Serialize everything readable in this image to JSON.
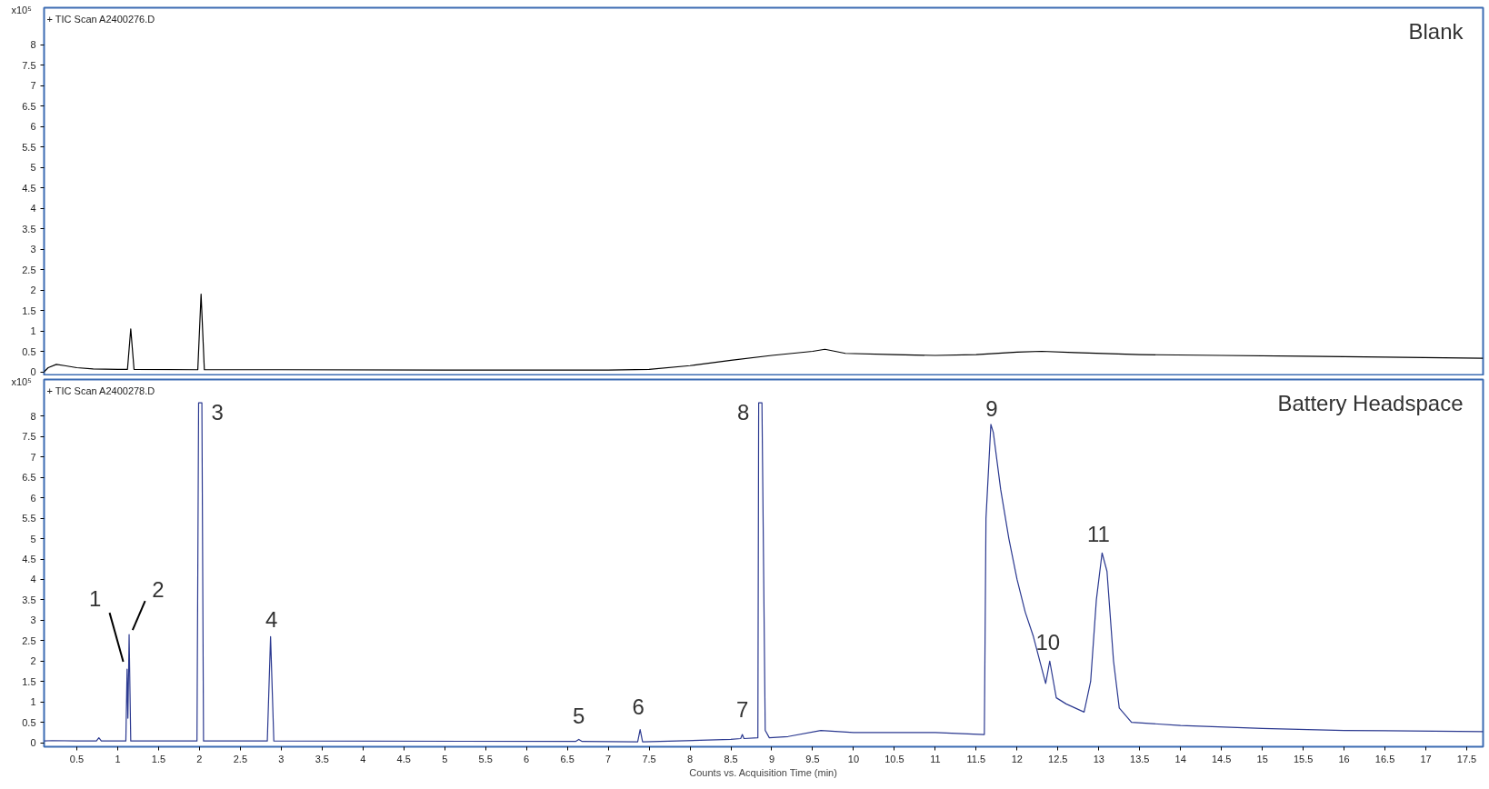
{
  "chart_data": [
    {
      "type": "line",
      "title": "Blank",
      "ylabel": "x10⁵",
      "annotations": [
        "+ TIC Scan A2400276.D"
      ],
      "x": [
        0.1,
        0.15,
        0.25,
        0.35,
        0.5,
        0.7,
        1.0,
        1.12,
        1.16,
        1.2,
        1.98,
        2.02,
        2.06,
        3,
        5,
        7,
        7.5,
        8,
        8.5,
        9,
        9.5,
        9.65,
        9.9,
        10.5,
        11,
        11.5,
        12,
        12.3,
        12.7,
        13.5,
        14.5,
        15.5,
        16.5,
        17.7
      ],
      "series": [
        {
          "color": "#000000",
          "values": [
            0.0,
            0.1,
            0.18,
            0.15,
            0.1,
            0.07,
            0.06,
            0.06,
            1.05,
            0.06,
            0.05,
            1.9,
            0.05,
            0.05,
            0.04,
            0.04,
            0.06,
            0.15,
            0.28,
            0.4,
            0.5,
            0.55,
            0.45,
            0.42,
            0.4,
            0.42,
            0.48,
            0.5,
            0.47,
            0.42,
            0.4,
            0.38,
            0.36,
            0.33
          ]
        }
      ],
      "xlim": [
        0.1,
        17.7
      ],
      "ylim": [
        -0.1,
        8.9
      ],
      "yticks": [
        0,
        0.5,
        1,
        1.5,
        2,
        2.5,
        3,
        3.5,
        4,
        4.5,
        5,
        5.5,
        6,
        6.5,
        7,
        7.5,
        8
      ],
      "tick_labels": "y",
      "grid": false
    },
    {
      "type": "line",
      "title": "Battery Headspace",
      "ylabel": "x10⁵",
      "xlabel": "Counts vs. Acquisition Time (min)",
      "annotations": [
        "+ TIC Scan A2400278.D",
        {
          "text": "1",
          "x": 1.115,
          "y": 1.8
        },
        {
          "text": "2",
          "x": 1.14,
          "y": 2.65
        },
        {
          "text": "3",
          "x": 2.03,
          "y": 8.33
        },
        {
          "text": "4",
          "x": 2.87,
          "y": 2.6
        },
        {
          "text": "5",
          "x": 6.64,
          "y": 0.08
        },
        {
          "text": "6",
          "x": 7.39,
          "y": 0.32
        },
        {
          "text": "7",
          "x": 8.64,
          "y": 0.2
        },
        {
          "text": "8",
          "x": 8.84,
          "y": 8.33
        },
        {
          "text": "9",
          "x": 11.68,
          "y": 7.8
        },
        {
          "text": "10",
          "x": 12.4,
          "y": 2.0
        },
        {
          "text": "11",
          "x": 13.04,
          "y": 4.65
        }
      ],
      "x": [
        0.1,
        0.2,
        0.5,
        0.74,
        0.77,
        0.8,
        1.1,
        1.115,
        1.125,
        1.14,
        1.16,
        1.97,
        1.99,
        2.03,
        2.05,
        2.83,
        2.87,
        2.91,
        6.6,
        6.64,
        6.68,
        7.36,
        7.39,
        7.42,
        8.5,
        8.62,
        8.64,
        8.66,
        8.83,
        8.84,
        8.88,
        8.92,
        8.97,
        9.2,
        9.6,
        10,
        11,
        11.6,
        11.62,
        11.68,
        11.71,
        11.8,
        11.9,
        12.0,
        12.1,
        12.2,
        12.35,
        12.4,
        12.48,
        12.6,
        12.82,
        12.9,
        12.97,
        13.04,
        13.1,
        13.18,
        13.25,
        13.4,
        14,
        15,
        16,
        17.7
      ],
      "series": [
        {
          "color": "#2b3990",
          "values": [
            0.04,
            0.05,
            0.04,
            0.04,
            0.12,
            0.04,
            0.04,
            1.8,
            0.6,
            2.65,
            0.04,
            0.04,
            8.33,
            8.33,
            0.04,
            0.04,
            2.6,
            0.04,
            0.03,
            0.08,
            0.03,
            0.02,
            0.32,
            0.02,
            0.08,
            0.1,
            0.2,
            0.1,
            0.12,
            8.33,
            8.33,
            0.3,
            0.12,
            0.15,
            0.3,
            0.25,
            0.25,
            0.2,
            5.5,
            7.8,
            7.6,
            6.2,
            5.0,
            4.0,
            3.2,
            2.6,
            1.45,
            2.0,
            1.1,
            0.95,
            0.75,
            1.5,
            3.5,
            4.65,
            4.2,
            2.0,
            0.85,
            0.5,
            0.42,
            0.35,
            0.3,
            0.27
          ]
        }
      ],
      "xlim": [
        0.1,
        17.7
      ],
      "ylim": [
        -0.1,
        8.9
      ],
      "xticks": [
        0.5,
        1,
        1.5,
        2,
        2.5,
        3,
        3.5,
        4,
        4.5,
        5,
        5.5,
        6,
        6.5,
        7,
        7.5,
        8,
        8.5,
        9,
        9.5,
        10,
        10.5,
        11,
        11.5,
        12,
        12.5,
        13,
        13.5,
        14,
        14.5,
        15,
        15.5,
        16,
        16.5,
        17,
        17.5
      ],
      "yticks": [
        0,
        0.5,
        1,
        1.5,
        2,
        2.5,
        3,
        3.5,
        4,
        4.5,
        5,
        5.5,
        6,
        6.5,
        7,
        7.5,
        8
      ],
      "grid": false
    }
  ]
}
